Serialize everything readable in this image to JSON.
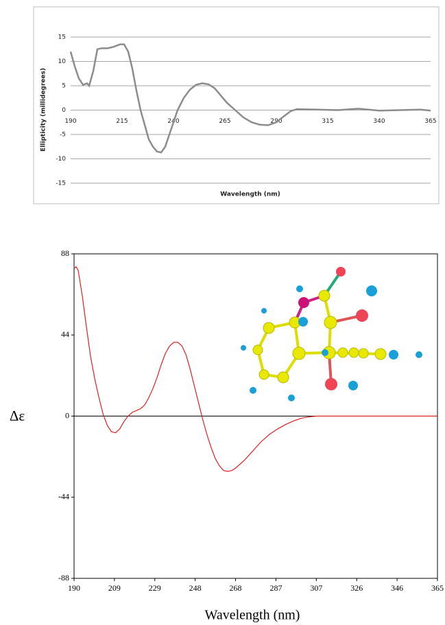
{
  "chart_data": [
    {
      "type": "line",
      "xlabel": "Wavelength (nm)",
      "ylabel": "Ellipticity (millidegrees)",
      "x": [
        190,
        192,
        194,
        196,
        198,
        199,
        201,
        203,
        205,
        208,
        211,
        214,
        216,
        218,
        220,
        222,
        224,
        226,
        228,
        230,
        232,
        234,
        236,
        238,
        240,
        242,
        245,
        248,
        251,
        254,
        257,
        260,
        263,
        266,
        270,
        274,
        278,
        282,
        286,
        290,
        293,
        297,
        300,
        310,
        320,
        330,
        340,
        350,
        360,
        365
      ],
      "series": [
        {
          "color": "#8c8c8c",
          "values": [
            12,
            9,
            6.5,
            5.2,
            5.5,
            5,
            8,
            12.5,
            12.7,
            12.7,
            13,
            13.5,
            13.5,
            12,
            8.5,
            4,
            0,
            -3,
            -6,
            -7.5,
            -8.5,
            -8.7,
            -7.5,
            -5,
            -2.5,
            0,
            2.5,
            4.2,
            5.2,
            5.5,
            5.3,
            4.5,
            3,
            1.5,
            0,
            -1.5,
            -2.5,
            -3,
            -3.1,
            -2.5,
            -1.5,
            -0.2,
            0.2,
            0.1,
            0,
            0.3,
            -0.1,
            0,
            0.1,
            -0.1
          ]
        }
      ],
      "xlim": [
        190,
        365
      ],
      "xticks": [
        190,
        215,
        240,
        265,
        290,
        315,
        340,
        365
      ],
      "ylim": [
        -15,
        15
      ],
      "yticks": [
        15,
        10,
        5,
        0,
        -5,
        -10,
        -15
      ],
      "grid": true
    },
    {
      "type": "line",
      "xlabel": "Wavelength (nm)",
      "ylabel": "Δε",
      "x": [
        190,
        191,
        192,
        194,
        196,
        198,
        200,
        202,
        204,
        206,
        208,
        210,
        212,
        214,
        216,
        218,
        220,
        222,
        224,
        226,
        228,
        230,
        232,
        234,
        236,
        238,
        240,
        242,
        244,
        246,
        248,
        250,
        252,
        254,
        256,
        258,
        260,
        262,
        264,
        266,
        268,
        272,
        276,
        280,
        284,
        288,
        292,
        296,
        300,
        304,
        307,
        320,
        340,
        365
      ],
      "series": [
        {
          "color": "#e02020",
          "values": [
            80,
            81,
            79,
            65,
            48,
            32,
            20,
            10,
            1,
            -5,
            -8.5,
            -9,
            -7,
            -3,
            0,
            2,
            3,
            4,
            6,
            10,
            15,
            21,
            28,
            34,
            38,
            40,
            40,
            38,
            33,
            25,
            16,
            7,
            -2,
            -10,
            -17,
            -23,
            -27,
            -29.5,
            -30,
            -29.5,
            -28,
            -24,
            -19,
            -14,
            -10,
            -7,
            -4.5,
            -2.5,
            -1,
            -0.3,
            0,
            0,
            0,
            0
          ]
        }
      ],
      "xlim": [
        190,
        365
      ],
      "xticks": [
        190,
        {
          "value": 209.44,
          "label": "209"
        },
        {
          "value": 228.89,
          "label": "229"
        },
        {
          "value": 248.33,
          "label": "248"
        },
        {
          "value": 267.78,
          "label": "268"
        },
        {
          "value": 287.22,
          "label": "287"
        },
        {
          "value": 306.67,
          "label": "307"
        },
        {
          "value": 326.11,
          "label": "326"
        },
        {
          "value": 345.56,
          "label": "346"
        },
        365
      ],
      "ylim": [
        -88,
        88
      ],
      "yticks": [
        88,
        44,
        0,
        -44,
        -88
      ],
      "grid": false
    }
  ]
}
